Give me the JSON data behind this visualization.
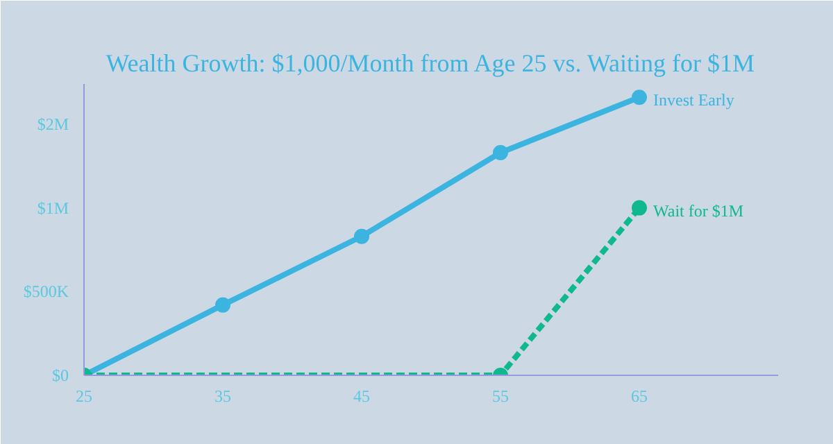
{
  "chart_data": {
    "type": "line",
    "title": "Wealth Growth: $1,000/Month from Age 25 vs. Waiting for $1M",
    "x": [
      25,
      35,
      45,
      55,
      65
    ],
    "series": [
      {
        "name": "Invest Early",
        "color": "#3cb4e0",
        "values": [
          0,
          420000,
          830000,
          1330000,
          1660000
        ],
        "line_style": "solid"
      },
      {
        "name": "Wait for $1M",
        "color": "#0fb88e",
        "x": [
          25,
          55,
          65
        ],
        "values": [
          0,
          0,
          1000000
        ],
        "line_style": "dashed"
      }
    ],
    "xlim": [
      25,
      75
    ],
    "xticks": [
      25,
      35,
      45,
      55,
      65
    ],
    "ylim": [
      0,
      1740000
    ],
    "yticks": [
      {
        "value": 0,
        "label": "$0"
      },
      {
        "value": 500000,
        "label": "$500K"
      },
      {
        "value": 1000000,
        "label": "$1M"
      },
      {
        "value": 1500000,
        "label": "$2M"
      }
    ],
    "grid": false,
    "marker": "circle"
  }
}
